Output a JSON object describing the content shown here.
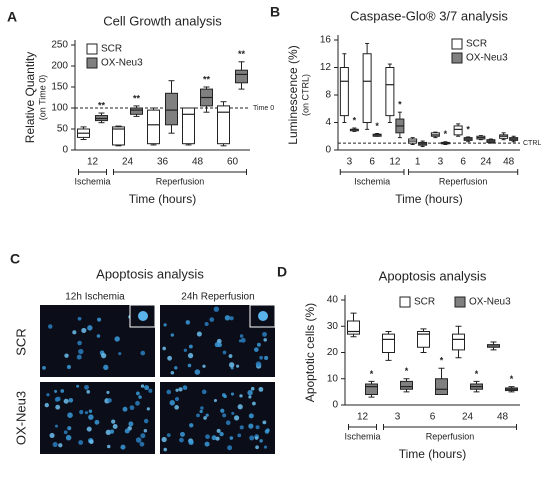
{
  "chart_data": [
    {
      "type": "box",
      "panel": "A",
      "title": "Cell Growth analysis",
      "ylabel": "Relative Quantity",
      "ylabel_sub": "(on Time 0)",
      "xlabel": "Time (hours)",
      "categories": [
        "12",
        "24",
        "36",
        "48",
        "60"
      ],
      "category_groups": [
        "Ischemia",
        "Reperfusion",
        "Reperfusion",
        "Reperfusion",
        "Reperfusion"
      ],
      "series": [
        {
          "name": "SCR",
          "color": "#ffffff",
          "values": [
            [
              25,
              30,
              40,
              50,
              55
            ],
            [
              10,
              12,
              50,
              55,
              57
            ],
            [
              12,
              15,
              60,
              95,
              100
            ],
            [
              12,
              15,
              85,
              100,
              100
            ],
            [
              10,
              15,
              90,
              105,
              115
            ]
          ]
        },
        {
          "name": "OX-Neu3",
          "color": "#808080",
          "values": [
            [
              65,
              70,
              75,
              82,
              88
            ],
            [
              80,
              85,
              95,
              100,
              105
            ],
            [
              40,
              60,
              95,
              135,
              165
            ],
            [
              90,
              105,
              125,
              145,
              150
            ],
            [
              145,
              160,
              180,
              190,
              210
            ]
          ],
          "significance": [
            "**",
            "**",
            null,
            "**",
            "**"
          ]
        }
      ],
      "ylim": [
        0,
        250
      ],
      "yticks": [
        0,
        50,
        100,
        150,
        200,
        250
      ],
      "reference": {
        "value": 100,
        "label": "Time 0"
      },
      "legend": "upper left",
      "grid": false
    },
    {
      "type": "box",
      "panel": "B",
      "title": "Caspase-Glo® 3/7 analysis",
      "ylabel": "Luminescence (%)",
      "ylabel_sub": "(on CTRL)",
      "xlabel": "Time (hours)",
      "categories": [
        "3",
        "6",
        "12",
        "1",
        "3",
        "6",
        "24",
        "48"
      ],
      "category_groups": [
        "Ischemia",
        "Ischemia",
        "Ischemia",
        "Reperfusion",
        "Reperfusion",
        "Reperfusion",
        "Reperfusion",
        "Reperfusion"
      ],
      "series": [
        {
          "name": "SCR",
          "color": "#ffffff",
          "values": [
            [
              4,
              5,
              10,
              12,
              14
            ],
            [
              3,
              4,
              10,
              14,
              15.5
            ],
            [
              4,
              5,
              9.5,
              12,
              12.5
            ],
            [
              0.8,
              1,
              1.3,
              1.6,
              1.8
            ],
            [
              1.8,
              2,
              2.2,
              2.5,
              2.6
            ],
            [
              2,
              2.2,
              3,
              3.5,
              3.8
            ],
            [
              1.5,
              1.6,
              1.8,
              2,
              2.1
            ],
            [
              1.5,
              1.7,
              2,
              2.2,
              2.5
            ]
          ]
        },
        {
          "name": "OX-Neu3",
          "color": "#808080",
          "values": [
            [
              2.7,
              2.8,
              3,
              3,
              3.2
            ],
            [
              2,
              2,
              2.2,
              2.3,
              2.4
            ],
            [
              1.8,
              2.5,
              3.5,
              4.5,
              5.5
            ],
            [
              0.5,
              0.7,
              0.9,
              1.1,
              1.3
            ],
            [
              0.8,
              0.9,
              1,
              1.1,
              1.2
            ],
            [
              1.2,
              1.4,
              1.6,
              1.8,
              1.9
            ],
            [
              1,
              1.1,
              1.3,
              1.5,
              1.6
            ],
            [
              1.2,
              1.4,
              1.6,
              1.8,
              2
            ]
          ],
          "significance": [
            "*",
            "*",
            "*",
            null,
            "*",
            "*",
            null,
            null
          ]
        }
      ],
      "ylim": [
        0,
        16
      ],
      "yticks": [
        0,
        4,
        8,
        12,
        16
      ],
      "reference": {
        "value": 1,
        "label": "CTRL"
      },
      "legend": "upper right",
      "grid": false
    },
    {
      "type": "box",
      "panel": "D",
      "title": "Apoptosis analysis",
      "ylabel": "Apoptotic cells (%)",
      "xlabel": "Time (hours)",
      "categories": [
        "12",
        "3",
        "6",
        "24",
        "48"
      ],
      "category_groups": [
        "Ischemia",
        "Reperfusion",
        "Reperfusion",
        "Reperfusion",
        "Reperfusion"
      ],
      "series": [
        {
          "name": "SCR",
          "color": "#ffffff",
          "values": [
            [
              26,
              27,
              28,
              32,
              35
            ],
            [
              17,
              20,
              25,
              27,
              28
            ],
            [
              20,
              22,
              27,
              28,
              29
            ],
            [
              18,
              21,
              25,
              27,
              30
            ],
            [
              21,
              22,
              22.5,
              23,
              24
            ]
          ]
        },
        {
          "name": "OX-Neu3",
          "color": "#808080",
          "values": [
            [
              3,
              4,
              7,
              8,
              9
            ],
            [
              5,
              6,
              7,
              9,
              10
            ],
            [
              4,
              4,
              6,
              10,
              14
            ],
            [
              5,
              6,
              7,
              8,
              9
            ],
            [
              5,
              5.5,
              6,
              6.5,
              7
            ]
          ],
          "significance": [
            "*",
            "*",
            "*",
            "*",
            "*"
          ]
        }
      ],
      "ylim": [
        0,
        40
      ],
      "yticks": [
        0,
        10,
        20,
        30,
        40
      ],
      "legend": "upper center",
      "grid": false
    }
  ],
  "image_panel": {
    "panel": "C",
    "title": "Apoptosis analysis",
    "columns": [
      "12h Ischemia",
      "24h Reperfusion"
    ],
    "rows": [
      "SCR",
      "OX-Neu3"
    ]
  }
}
